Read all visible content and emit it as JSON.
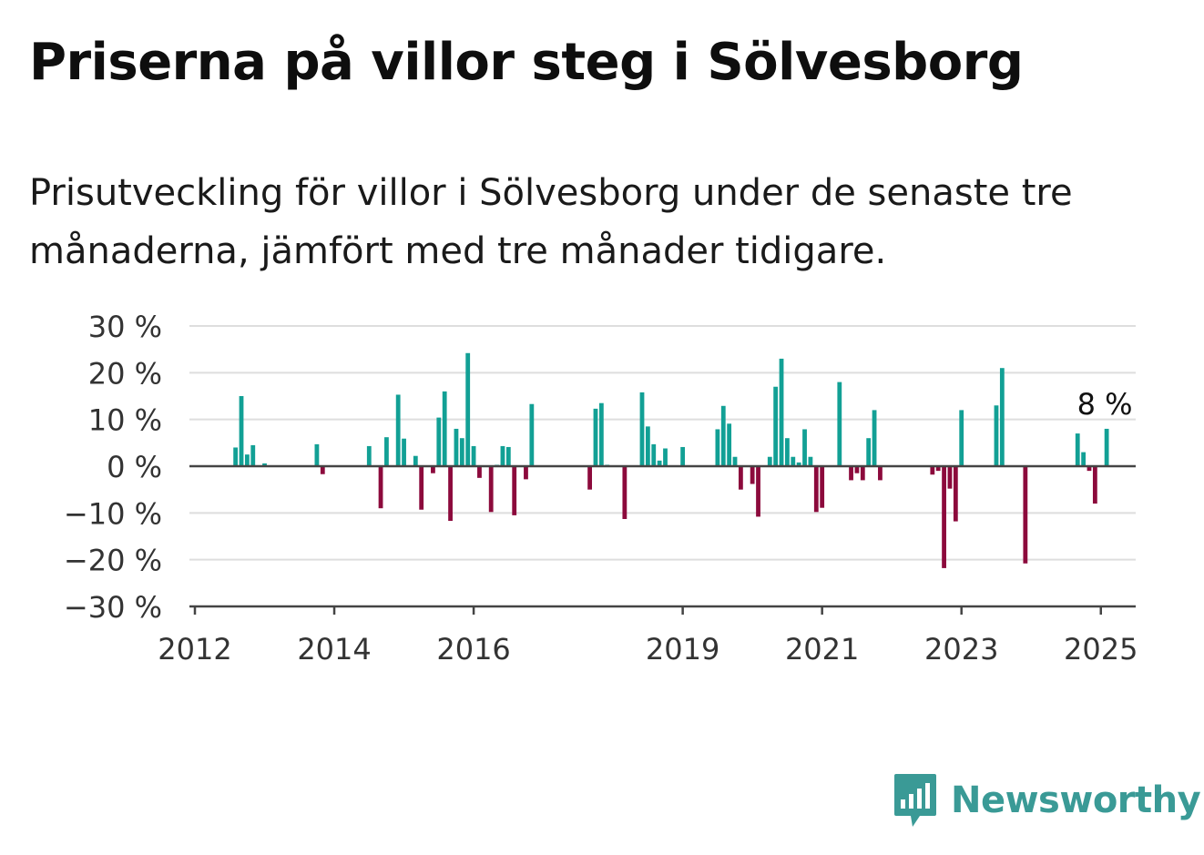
{
  "header": {
    "title": "Priserna på villor steg i Sölvesborg",
    "subtitle": "Prisutveckling för villor i Sölvesborg under de senaste tre månaderna, jämfört med tre månader tidigare."
  },
  "brand": {
    "name": "Newsworthy",
    "icon": "newsworthy-logo-icon"
  },
  "chart_data": {
    "type": "bar",
    "ylim": [
      -30,
      30
    ],
    "yticks": [
      30,
      20,
      10,
      0,
      -10,
      -20,
      -30
    ],
    "ytick_labels": [
      "30 %",
      "20 %",
      "10 %",
      "0 %",
      "−10 %",
      "−20 %",
      "−30 %"
    ],
    "xlim": [
      "2012-01",
      "2025-07"
    ],
    "xticks": [
      "2012",
      "2014",
      "2016",
      "2019",
      "2021",
      "2023",
      "2025"
    ],
    "last_value_label": "8 %",
    "grid": true,
    "colors": {
      "positive": "#12a095",
      "negative": "#8c0a3c",
      "grid": "#dedede",
      "axis": "#444444"
    },
    "points": [
      {
        "x": "2012-08",
        "y": 4
      },
      {
        "x": "2012-09",
        "y": 15
      },
      {
        "x": "2012-10",
        "y": 2.5
      },
      {
        "x": "2012-11",
        "y": 4.5
      },
      {
        "x": "2013-01",
        "y": 0.6
      },
      {
        "x": "2013-10",
        "y": 4.7
      },
      {
        "x": "2013-11",
        "y": -1.7
      },
      {
        "x": "2014-07",
        "y": 4.3
      },
      {
        "x": "2014-09",
        "y": -9
      },
      {
        "x": "2014-10",
        "y": 6.2
      },
      {
        "x": "2014-12",
        "y": 15.3
      },
      {
        "x": "2015-01",
        "y": 5.9
      },
      {
        "x": "2015-03",
        "y": 2.2
      },
      {
        "x": "2015-04",
        "y": -9.3
      },
      {
        "x": "2015-06",
        "y": -1.5
      },
      {
        "x": "2015-07",
        "y": 10.4
      },
      {
        "x": "2015-08",
        "y": 16
      },
      {
        "x": "2015-09",
        "y": -11.7
      },
      {
        "x": "2015-10",
        "y": 8
      },
      {
        "x": "2015-11",
        "y": 6
      },
      {
        "x": "2015-12",
        "y": 24.2
      },
      {
        "x": "2016-01",
        "y": 4.3
      },
      {
        "x": "2016-02",
        "y": -2.5
      },
      {
        "x": "2016-04",
        "y": -9.8
      },
      {
        "x": "2016-05",
        "y": 0.3
      },
      {
        "x": "2016-06",
        "y": 4.3
      },
      {
        "x": "2016-07",
        "y": 4.1
      },
      {
        "x": "2016-08",
        "y": -10.5
      },
      {
        "x": "2016-10",
        "y": -2.8
      },
      {
        "x": "2016-11",
        "y": 13.3
      },
      {
        "x": "2017-09",
        "y": -5
      },
      {
        "x": "2017-10",
        "y": 12.3
      },
      {
        "x": "2017-11",
        "y": 13.5
      },
      {
        "x": "2017-12",
        "y": 0.3
      },
      {
        "x": "2018-03",
        "y": -11.3
      },
      {
        "x": "2018-06",
        "y": 15.8
      },
      {
        "x": "2018-07",
        "y": 8.5
      },
      {
        "x": "2018-08",
        "y": 4.7
      },
      {
        "x": "2018-09",
        "y": 1.2
      },
      {
        "x": "2018-10",
        "y": 3.8
      },
      {
        "x": "2019-01",
        "y": 4.1
      },
      {
        "x": "2019-07",
        "y": 7.9
      },
      {
        "x": "2019-08",
        "y": 12.9
      },
      {
        "x": "2019-09",
        "y": 9.1
      },
      {
        "x": "2019-10",
        "y": 2
      },
      {
        "x": "2019-11",
        "y": -5
      },
      {
        "x": "2020-01",
        "y": -3.8
      },
      {
        "x": "2020-02",
        "y": -10.8
      },
      {
        "x": "2020-04",
        "y": 2
      },
      {
        "x": "2020-05",
        "y": 17
      },
      {
        "x": "2020-06",
        "y": 23
      },
      {
        "x": "2020-07",
        "y": 6
      },
      {
        "x": "2020-08",
        "y": 2
      },
      {
        "x": "2020-09",
        "y": 0.8
      },
      {
        "x": "2020-10",
        "y": 7.9
      },
      {
        "x": "2020-11",
        "y": 2
      },
      {
        "x": "2020-12",
        "y": -9.8
      },
      {
        "x": "2021-01",
        "y": -8.9
      },
      {
        "x": "2021-04",
        "y": 18
      },
      {
        "x": "2021-06",
        "y": -3
      },
      {
        "x": "2021-07",
        "y": -1.5
      },
      {
        "x": "2021-08",
        "y": -3
      },
      {
        "x": "2021-09",
        "y": 6
      },
      {
        "x": "2021-10",
        "y": 12
      },
      {
        "x": "2021-11",
        "y": -3
      },
      {
        "x": "2022-08",
        "y": -1.8
      },
      {
        "x": "2022-09",
        "y": -1
      },
      {
        "x": "2022-10",
        "y": -21.8
      },
      {
        "x": "2022-11",
        "y": -4.8
      },
      {
        "x": "2022-12",
        "y": -11.8
      },
      {
        "x": "2023-01",
        "y": 12
      },
      {
        "x": "2023-07",
        "y": 13
      },
      {
        "x": "2023-08",
        "y": 21
      },
      {
        "x": "2023-12",
        "y": -20.8
      },
      {
        "x": "2024-09",
        "y": 7
      },
      {
        "x": "2024-10",
        "y": 3
      },
      {
        "x": "2024-11",
        "y": -1
      },
      {
        "x": "2024-12",
        "y": -8
      },
      {
        "x": "2025-02",
        "y": 8
      }
    ]
  }
}
